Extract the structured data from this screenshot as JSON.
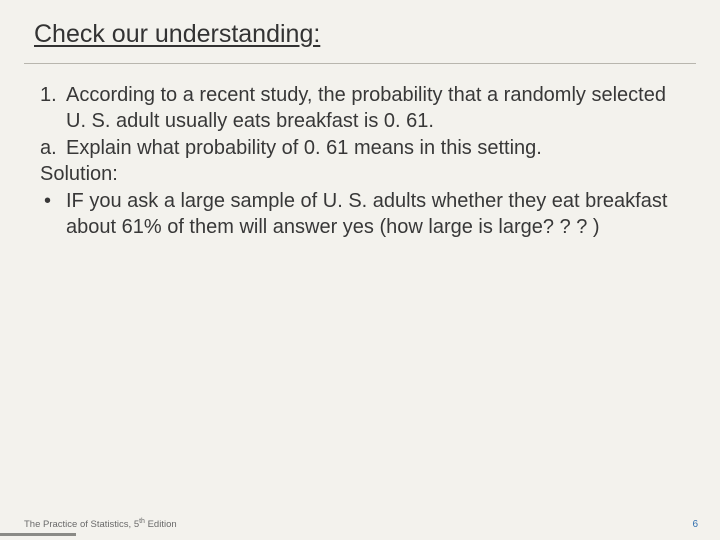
{
  "slide": {
    "title": "Check our understanding:",
    "background_color": "#f3f2ed",
    "text_color": "#383838",
    "title_fontsize": 25,
    "body_fontsize": 20,
    "divider_color": "#b8b6ae"
  },
  "body": {
    "item1_marker": "1.",
    "item1_text": "According to a recent study, the probability that a randomly selected U. S. adult usually eats breakfast is 0. 61.",
    "itemA_marker": "a.",
    "itemA_text": "Explain what probability of 0. 61 means in this setting.",
    "solution_label": "Solution:",
    "bullet_marker": "•",
    "bullet_text": "IF you ask a large sample of U. S. adults whether they eat breakfast about 61% of them will answer yes (how large is large? ? ? )"
  },
  "footer": {
    "text_prefix": "The Practice of Statistics, 5",
    "text_sup": "th",
    "text_suffix": " Edition",
    "page_number": "6",
    "page_number_color": "#2f6fb0",
    "footer_color": "#6a6a6a",
    "bar_color": "#8a8a86"
  }
}
